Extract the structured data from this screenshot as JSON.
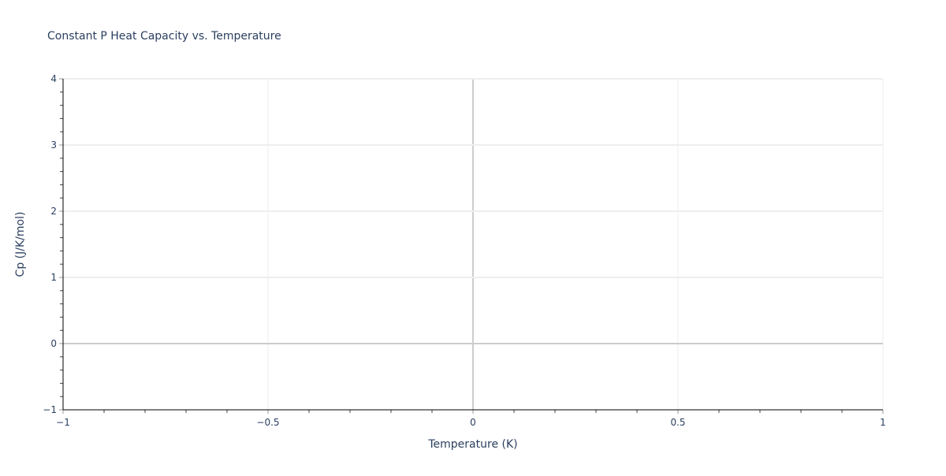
{
  "chart_data": {
    "type": "line",
    "title": "Constant P Heat Capacity vs. Temperature",
    "xlabel": "Temperature (K)",
    "ylabel": "Cp (J/K/mol)",
    "xlim": [
      -1,
      1
    ],
    "ylim": [
      -1,
      4
    ],
    "xticks": [
      -1,
      -0.5,
      0,
      0.5,
      1
    ],
    "xtick_labels": [
      "−1",
      "−0.5",
      "0",
      "0.5",
      "1"
    ],
    "yticks": [
      -1,
      0,
      1,
      2,
      3,
      4
    ],
    "ytick_labels": [
      "−1",
      "0",
      "1",
      "2",
      "3",
      "4"
    ],
    "grid": true,
    "series": [],
    "colors": {
      "grid": "#eeeeee",
      "zeroline": "#cccccc",
      "axis": "#000000",
      "text": "#2a3f5f"
    }
  }
}
